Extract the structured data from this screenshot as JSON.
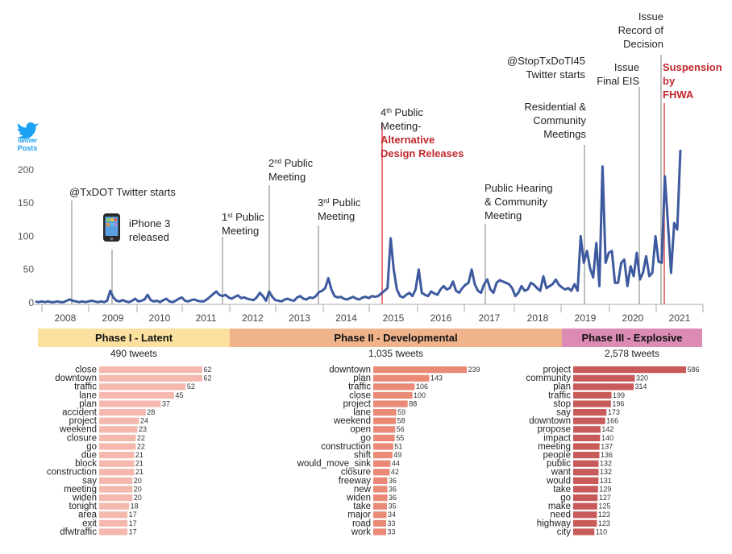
{
  "colors": {
    "line": "#3e5a9f",
    "marker": "#9a9a9a",
    "highlight_marker": "#e05a5a",
    "highlight_text": "#c0282d",
    "twitter_blue": "#1da1f2",
    "phase1_band": "#fbe0a0",
    "phase2_band": "#f0b48c",
    "phase3_band": "#dc8cb4",
    "phase1_bar": "#f4b8ae",
    "phase2_bar": "#ea8a76",
    "phase3_bar": "#c85a5a"
  },
  "icons": {
    "twitter": "twitter-bird-icon",
    "phone": "iphone-icon"
  },
  "legend": {
    "icon_label": "twitter",
    "posts_label": "Posts"
  },
  "chart_data": [
    {
      "type": "line",
      "series": [
        {
          "values": [
            2,
            1,
            2,
            1,
            2,
            1,
            1,
            2,
            1,
            1,
            3,
            5,
            3,
            2,
            1,
            2,
            1,
            2,
            3,
            2,
            1,
            2,
            1,
            3,
            18,
            8,
            3,
            2,
            4,
            2,
            1,
            3,
            6,
            2,
            3,
            5,
            12,
            4,
            2,
            3,
            1,
            4,
            6,
            2,
            1,
            3,
            6,
            8,
            3,
            2,
            4,
            5,
            3,
            2,
            2,
            5,
            9,
            13,
            17,
            12,
            10,
            12,
            8,
            6,
            9,
            11,
            7,
            8,
            6,
            5,
            4,
            8,
            15,
            10,
            3,
            17,
            9,
            4,
            3,
            2,
            5,
            6,
            4,
            3,
            8,
            10,
            6,
            5,
            8,
            7,
            10,
            16,
            18,
            22,
            37,
            20,
            10,
            8,
            9,
            6,
            5,
            7,
            9,
            6,
            5,
            8,
            9,
            7,
            10,
            9,
            10,
            14,
            18,
            22,
            97,
            50,
            20,
            10,
            8,
            12,
            15,
            10,
            20,
            50,
            15,
            12,
            10,
            17,
            14,
            12,
            20,
            25,
            20,
            22,
            32,
            18,
            15,
            22,
            27,
            30,
            50,
            28,
            18,
            15,
            28,
            35,
            20,
            15,
            30,
            34,
            32,
            30,
            28,
            22,
            10,
            15,
            25,
            18,
            20,
            30,
            27,
            22,
            18,
            40,
            22,
            25,
            28,
            35,
            27,
            23,
            20,
            22,
            18,
            28,
            18,
            100,
            60,
            78,
            52,
            38,
            90,
            25,
            205,
            60,
            75,
            78,
            30,
            30,
            60,
            65,
            25,
            55,
            40,
            75,
            35,
            45,
            70,
            40,
            45,
            100,
            62,
            60,
            190,
            120,
            45,
            120,
            110,
            230
          ]
        }
      ],
      "x_start_year": 2008,
      "xlim": [
        2008,
        2021.7
      ],
      "ylim": [
        0,
        230
      ],
      "y_ticks": [
        0,
        50,
        100,
        150,
        200
      ],
      "x_tick_labels": [
        "2008",
        "2009",
        "2010",
        "2011",
        "2012",
        "2013",
        "2014",
        "2015",
        "2016",
        "2017",
        "2018",
        "2019",
        "2020",
        "2021"
      ],
      "events": [
        {
          "x": 2008.7,
          "lines": [
            "@TxDOT Twitter starts"
          ],
          "highlight": false
        },
        {
          "x": 2009.5,
          "lines": [
            "iPhone 3",
            "released"
          ],
          "highlight": false
        },
        {
          "x": 2011.7,
          "lines": [
            "1st Public",
            "Meeting"
          ],
          "highlight": false
        },
        {
          "x": 2013.1,
          "lines": [
            "2nd Public",
            "Meeting"
          ],
          "highlight": false
        },
        {
          "x": 2014.6,
          "lines": [
            "3rd Public",
            "Meeting"
          ],
          "highlight": false
        },
        {
          "x": 2016.0,
          "lines": [
            "4th Public",
            "Meeting-"
          ],
          "sub_lines": [
            "Alternative",
            "Design Releases"
          ],
          "highlight": true
        },
        {
          "x": 2019.15,
          "lines": [
            "Public Hearing",
            "& Community",
            "Meeting"
          ],
          "highlight": false
        },
        {
          "x": 2020.75,
          "lines": [
            "Residential &",
            "Community",
            "Meetings"
          ],
          "highlight": false
        },
        {
          "x": 2020.82,
          "lines": [
            "@StopTxDoTI45",
            "Twitter starts"
          ],
          "highlight": false
        },
        {
          "x": 2021.55,
          "lines": [
            "Issue",
            "Final EIS"
          ],
          "highlight": false
        },
        {
          "x": 2022.25,
          "lines": [
            "Issue",
            "Record of",
            "Decision"
          ],
          "highlight": false
        },
        {
          "x": 2022.35,
          "lines": [],
          "red_lines": [
            "Suspension",
            "by",
            "FHWA"
          ],
          "highlight": true
        }
      ]
    },
    {
      "type": "bar",
      "title": "Phase I - Latent",
      "subtitle": "490 tweets",
      "categories": [
        "close",
        "downtown",
        "traffic",
        "lane",
        "plan",
        "accident",
        "project",
        "weekend",
        "closure",
        "go",
        "due",
        "block",
        "construction",
        "say",
        "meeting",
        "widen",
        "tonight",
        "area",
        "exit",
        "dfwtraffic"
      ],
      "values": [
        62,
        62,
        52,
        45,
        37,
        28,
        24,
        23,
        22,
        22,
        21,
        21,
        21,
        20,
        20,
        20,
        18,
        17,
        17,
        17
      ]
    },
    {
      "type": "bar",
      "title": "Phase II - Developmental",
      "subtitle": "1,035 tweets",
      "categories": [
        "downtown",
        "plan",
        "traffic",
        "close",
        "project",
        "lane",
        "weekend",
        "open",
        "go",
        "construction",
        "shift",
        "would_move_sink",
        "closure",
        "freeway",
        "new",
        "widen",
        "take",
        "major",
        "road",
        "work"
      ],
      "values": [
        239,
        143,
        106,
        100,
        88,
        59,
        58,
        56,
        55,
        51,
        49,
        44,
        42,
        36,
        36,
        36,
        35,
        34,
        33,
        33
      ]
    },
    {
      "type": "bar",
      "title": "Phase III - Explosive",
      "subtitle": "2,578 tweets",
      "categories": [
        "project",
        "community",
        "plan",
        "traffic",
        "stop",
        "say",
        "downtown",
        "propose",
        "impact",
        "meeting",
        "people",
        "public",
        "want",
        "would",
        "take",
        "go",
        "make",
        "need",
        "highway",
        "city"
      ],
      "values": [
        586,
        320,
        314,
        199,
        196,
        173,
        166,
        142,
        140,
        137,
        136,
        132,
        132,
        131,
        129,
        127,
        125,
        123,
        123,
        110
      ]
    }
  ]
}
